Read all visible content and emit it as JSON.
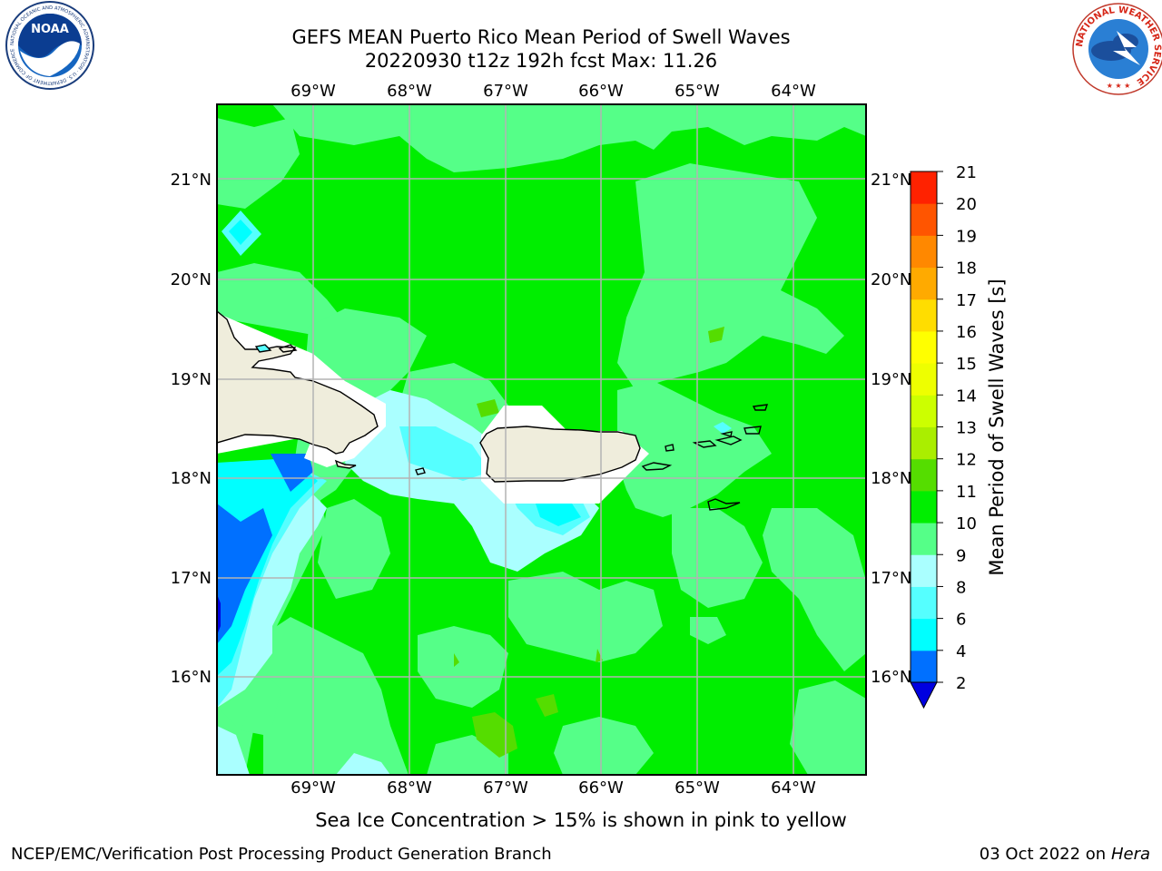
{
  "title": {
    "line1": "GEFS MEAN Puerto Rico Mean Period of Swell Waves",
    "line2": "20220930 t12z 192h fcst   Max: 11.26"
  },
  "axes": {
    "lon_labels": [
      "69°W",
      "68°W",
      "67°W",
      "66°W",
      "65°W",
      "64°W"
    ],
    "lat_labels": [
      "21°N",
      "20°N",
      "19°N",
      "18°N",
      "17°N",
      "16°N"
    ]
  },
  "colorbar": {
    "label": "Mean Period of Swell Waves [s]",
    "ticks": [
      "2",
      "4",
      "6",
      "8",
      "9",
      "10",
      "11",
      "12",
      "13",
      "14",
      "15",
      "16",
      "17",
      "18",
      "19",
      "20",
      "21"
    ],
    "colors": [
      "#0000e0",
      "#0070ff",
      "#00ffff",
      "#55ffff",
      "#aaffff",
      "#55ff88",
      "#00ee00",
      "#55dd00",
      "#aaee00",
      "#ccff00",
      "#eeff00",
      "#ffff00",
      "#ffdd00",
      "#ffaa00",
      "#ff8800",
      "#ff5500",
      "#ff2200",
      "#ff0000"
    ]
  },
  "map": {
    "background_color": "#00ee00",
    "land_color": "#efeddc",
    "no_data_color": "#ffffff"
  },
  "caption": "Sea Ice Concentration > 15% is shown in pink to yellow",
  "footer": {
    "left": "NCEP/EMC/Verification Post Processing Product Generation Branch",
    "date": "03 Oct 2022 on ",
    "host": "Hera"
  },
  "logos": {
    "noaa": {
      "text": "NOAA",
      "ring": "NATIONAL OCEANIC AND ATMOSPHERIC ADMINISTRATION · U.S. DEPARTMENT OF COMMERCE"
    },
    "nws": {
      "ring": "NATIONAL WEATHER SERVICE"
    }
  }
}
